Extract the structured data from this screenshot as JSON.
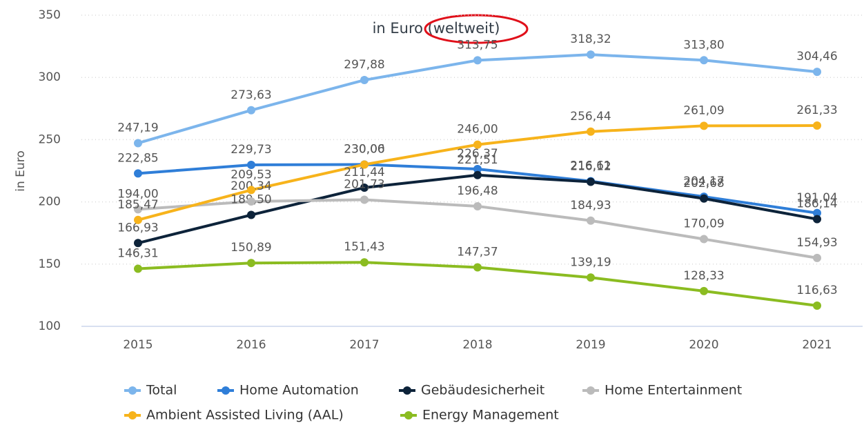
{
  "chart_data": {
    "type": "line",
    "title": "in Euro (weltweit)",
    "y_label": "in Euro",
    "categories": [
      "2015",
      "2016",
      "2017",
      "2018",
      "2019",
      "2020",
      "2021"
    ],
    "ylim": [
      100,
      350
    ],
    "yticks": [
      100,
      150,
      200,
      250,
      300,
      350
    ],
    "grid": true,
    "legend": "bottom",
    "series": [
      {
        "name": "Total",
        "color": "#7cb5ec",
        "values": [
          247.19,
          273.63,
          297.88,
          313.75,
          318.32,
          313.8,
          304.46
        ],
        "value_labels": [
          "247,19",
          "273,63",
          "297,88",
          "313,75",
          "318,32",
          "313,80",
          "304,46"
        ]
      },
      {
        "name": "Home Automation",
        "color": "#2f7ed8",
        "values": [
          222.85,
          229.73,
          230.06,
          226.37,
          216.61,
          204.17,
          191.04
        ],
        "value_labels": [
          "222,85",
          "229,73",
          "230,06",
          "226,37",
          "216,61",
          "204,17",
          "191,04"
        ]
      },
      {
        "name": "Gebäudesicherheit",
        "color": "#0d233a",
        "values": [
          166.93,
          189.5,
          211.44,
          221.51,
          216.12,
          202.68,
          186.14
        ],
        "value_labels": [
          "166,93",
          "189,50",
          "211,44",
          "221,51",
          "216,12",
          "202,68",
          "186,14"
        ]
      },
      {
        "name": "Home Entertainment",
        "color": "#bbbbbb",
        "values": [
          194.0,
          200.34,
          201.73,
          196.48,
          184.93,
          170.09,
          154.93
        ],
        "value_labels": [
          "194,00",
          "200,34",
          "201,73",
          "196,48",
          "184,93",
          "170,09",
          "154,93"
        ]
      },
      {
        "name": "Ambient Assisted Living (AAL)",
        "color": "#f7b31b",
        "values": [
          185.47,
          209.53,
          230.0,
          246.0,
          256.44,
          261.09,
          261.33
        ],
        "value_labels": [
          "185,47",
          "209,53",
          "230,00",
          "246,00",
          "256,44",
          "261,09",
          "261,33"
        ]
      },
      {
        "name": "Energy Management",
        "color": "#8bbc21",
        "values": [
          146.31,
          150.89,
          151.43,
          147.37,
          139.19,
          128.33,
          116.63
        ],
        "value_labels": [
          "146,31",
          "150,89",
          "151,43",
          "147,37",
          "139,19",
          "128,33",
          "116,63"
        ]
      }
    ]
  }
}
